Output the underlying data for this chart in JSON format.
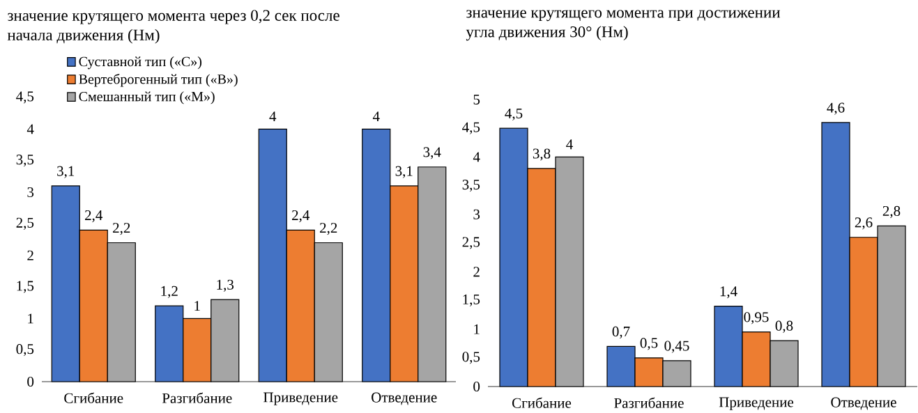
{
  "chart_data": [
    {
      "type": "bar",
      "title": "значение крутящего момента через 0,2 сек после начала движения (Нм)",
      "categories": [
        "Сгибание",
        "Разгибание",
        "Приведение",
        "Отведение"
      ],
      "series": [
        {
          "name": "Суставной тип («С»)",
          "color": "#4472c4",
          "values": [
            3.1,
            1.2,
            4,
            4
          ],
          "value_labels": [
            "3,1",
            "1,2",
            "4",
            "4"
          ]
        },
        {
          "name": "Вертеброгенный тип («В»)",
          "color": "#ed7d31",
          "values": [
            2.4,
            1,
            2.4,
            3.1
          ],
          "value_labels": [
            "2,4",
            "1",
            "2,4",
            "3,1"
          ]
        },
        {
          "name": "Смешанный тип («М»)",
          "color": "#a5a5a5",
          "values": [
            2.2,
            1.3,
            2.2,
            3.4
          ],
          "value_labels": [
            "2,2",
            "1,3",
            "2,2",
            "3,4"
          ]
        }
      ],
      "ylim": [
        0,
        4.5
      ],
      "yticks": [
        0,
        {
          "value": 0.5,
          "label": "0,5"
        },
        1,
        {
          "value": 1.5,
          "label": "1,5"
        },
        2,
        {
          "value": 2.5,
          "label": "2,5"
        },
        3,
        {
          "value": 3.5,
          "label": "3,5"
        },
        4,
        {
          "value": 4.5,
          "label": "4,5"
        }
      ],
      "legend": "top left"
    },
    {
      "type": "bar",
      "title": "значение крутящего момента при достижении угла движения 30° (Нм)",
      "categories": [
        "Сгибание",
        "Разгибание",
        "Приведение",
        "Отведение"
      ],
      "series": [
        {
          "color": "#4472c4",
          "values": [
            4.5,
            0.7,
            1.4,
            4.6
          ],
          "value_labels": [
            "4,5",
            "0,7",
            "1,4",
            "4,6"
          ]
        },
        {
          "color": "#ed7d31",
          "values": [
            3.8,
            0.5,
            0.95,
            2.6
          ],
          "value_labels": [
            "3,8",
            "0,5",
            "0,95",
            "2,6"
          ]
        },
        {
          "color": "#a5a5a5",
          "values": [
            4,
            0.45,
            0.8,
            2.8
          ],
          "value_labels": [
            "4",
            "0,45",
            "0,8",
            "2,8"
          ]
        }
      ],
      "ylim": [
        0,
        5
      ],
      "yticks": [
        0,
        {
          "value": 0.5,
          "label": "0,5"
        },
        1,
        {
          "value": 1.5,
          "label": "1,5"
        },
        2,
        {
          "value": 2.5,
          "label": "2,5"
        },
        3,
        {
          "value": 3.5,
          "label": "3,5"
        },
        4,
        {
          "value": 4.5,
          "label": "4,5"
        },
        5
      ]
    }
  ]
}
